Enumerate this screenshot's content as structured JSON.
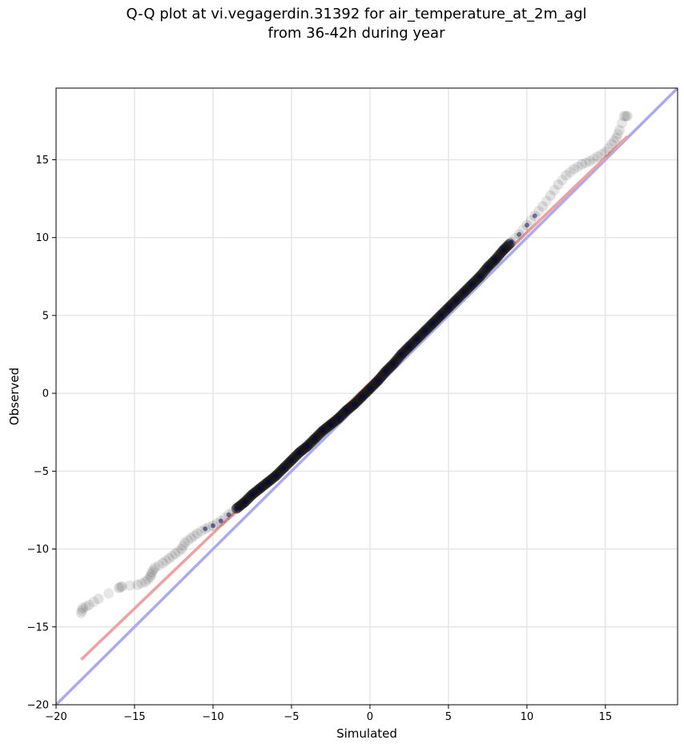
{
  "chart_data": {
    "type": "scatter",
    "title_lines": [
      "Q-Q plot at vi.vegagerdin.31392 for air_temperature_at_2m_agl",
      "from 36-42h during year"
    ],
    "xlabel": "Simulated",
    "ylabel": "Observed",
    "xlim": [
      -20,
      19.6
    ],
    "ylim": [
      -20,
      19.6
    ],
    "xticks": [
      -20,
      -15,
      -10,
      -5,
      0,
      5,
      10,
      15
    ],
    "yticks": [
      -20,
      -15,
      -10,
      -5,
      0,
      5,
      10,
      15
    ],
    "xtick_labels": [
      "−20",
      "−15",
      "−10",
      "−5",
      "0",
      "5",
      "10",
      "15"
    ],
    "ytick_labels": [
      "−20",
      "−15",
      "−10",
      "−5",
      "0",
      "5",
      "10",
      "15"
    ],
    "grid": true,
    "quantile_points": [
      [
        -18.4,
        -14.1
      ],
      [
        -18.3,
        -13.8
      ],
      [
        -17.9,
        -13.6
      ],
      [
        -17.3,
        -13.2
      ],
      [
        -16.0,
        -12.5
      ],
      [
        -15.8,
        -12.4
      ],
      [
        -14.8,
        -12.3
      ],
      [
        -14.3,
        -12.1
      ],
      [
        -14.0,
        -11.8
      ],
      [
        -13.9,
        -11.5
      ],
      [
        -13.7,
        -11.2
      ],
      [
        -13.2,
        -10.9
      ],
      [
        -12.8,
        -10.6
      ],
      [
        -12.4,
        -10.3
      ],
      [
        -12.0,
        -10.0
      ],
      [
        -11.8,
        -9.6
      ],
      [
        -11.4,
        -9.3
      ],
      [
        -11.0,
        -9.0
      ],
      [
        -10.5,
        -8.7
      ],
      [
        -10.0,
        -8.5
      ],
      [
        -9.5,
        -8.2
      ],
      [
        -9.0,
        -7.8
      ],
      [
        -8.5,
        -7.4
      ],
      [
        -8.0,
        -7.0
      ],
      [
        -7.5,
        -6.5
      ],
      [
        -7.0,
        -6.1
      ],
      [
        -6.5,
        -5.7
      ],
      [
        -6.0,
        -5.3
      ],
      [
        -5.5,
        -4.8
      ],
      [
        -5.0,
        -4.3
      ],
      [
        -4.5,
        -3.8
      ],
      [
        -4.0,
        -3.4
      ],
      [
        -3.5,
        -2.9
      ],
      [
        -3.0,
        -2.4
      ],
      [
        -2.5,
        -2.0
      ],
      [
        -2.0,
        -1.6
      ],
      [
        -1.5,
        -1.1
      ],
      [
        -1.0,
        -0.7
      ],
      [
        -0.5,
        -0.2
      ],
      [
        0.0,
        0.3
      ],
      [
        0.5,
        0.8
      ],
      [
        1.0,
        1.4
      ],
      [
        1.5,
        1.9
      ],
      [
        2.0,
        2.5
      ],
      [
        2.5,
        3.0
      ],
      [
        3.0,
        3.5
      ],
      [
        3.5,
        4.0
      ],
      [
        4.0,
        4.5
      ],
      [
        4.5,
        5.0
      ],
      [
        5.0,
        5.5
      ],
      [
        5.5,
        6.0
      ],
      [
        6.0,
        6.5
      ],
      [
        6.5,
        7.0
      ],
      [
        7.0,
        7.5
      ],
      [
        7.5,
        8.1
      ],
      [
        8.0,
        8.6
      ],
      [
        8.5,
        9.2
      ],
      [
        9.0,
        9.7
      ],
      [
        9.5,
        10.2
      ],
      [
        10.0,
        10.8
      ],
      [
        10.5,
        11.4
      ],
      [
        11.0,
        12.0
      ],
      [
        11.5,
        12.7
      ],
      [
        12.0,
        13.4
      ],
      [
        12.5,
        14.0
      ],
      [
        13.0,
        14.4
      ],
      [
        13.5,
        14.7
      ],
      [
        14.0,
        14.9
      ],
      [
        14.5,
        15.2
      ],
      [
        15.0,
        15.5
      ],
      [
        15.4,
        16.0
      ],
      [
        15.7,
        16.4
      ],
      [
        15.9,
        16.9
      ],
      [
        16.2,
        17.8
      ],
      [
        16.4,
        17.8
      ]
    ],
    "reference_lines": [
      {
        "kind": "one-to-one",
        "color": "#aaaaf0",
        "points": [
          [
            -20,
            -20
          ],
          [
            19.6,
            19.6
          ]
        ]
      },
      {
        "kind": "fit",
        "color": "#f0a0a0",
        "points": [
          [
            -18.4,
            -17.1
          ],
          [
            16.4,
            16.5
          ]
        ]
      }
    ],
    "colors": {
      "points": "#111111",
      "points_center": "#000060",
      "grid": "#e6e6e6"
    }
  }
}
